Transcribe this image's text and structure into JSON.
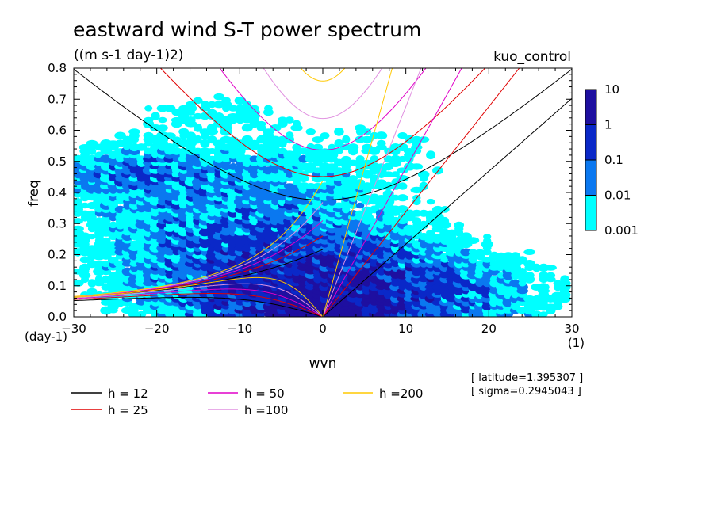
{
  "chart_data": {
    "type": "contour",
    "title": "eastward wind S-T power spectrum",
    "units": "((m s-1 day-1)2)",
    "case_name": "kuo_control",
    "xlabel": "wvn",
    "ylabel": "freq",
    "x_unit": "(1)",
    "y_unit": "(day-1)",
    "xlim": [
      -30,
      30
    ],
    "ylim": [
      0,
      0.8
    ],
    "x_ticks": [
      -30,
      -20,
      -10,
      0,
      10,
      20,
      30
    ],
    "x_tick_labels": [
      "−30",
      "−20",
      "−10",
      "0",
      "10",
      "20",
      "30"
    ],
    "y_ticks": [
      0,
      0.1,
      0.2,
      0.3,
      0.4,
      0.5,
      0.6,
      0.7,
      0.8
    ],
    "y_tick_labels": [
      "0.0",
      "0.1",
      "0.2",
      "0.3",
      "0.4",
      "0.5",
      "0.6",
      "0.7",
      "0.8"
    ],
    "color_levels": [
      0.001,
      0.01,
      0.1,
      1,
      10
    ],
    "colorbar_labels": [
      "10",
      "1",
      "0.1",
      "0.01",
      "0.001"
    ],
    "fill_colors": [
      "#00ffff",
      "#0a78f0",
      "#0a28c8",
      "#1e0fa0"
    ],
    "annotations": [
      "[ latitude=1.395307 ]",
      "[ sigma=0.2945043 ]"
    ],
    "dispersion_curves": [
      {
        "label": "h = 12",
        "h": 12,
        "color": "#000000"
      },
      {
        "label": "h = 25",
        "h": 25,
        "color": "#e00000"
      },
      {
        "label": "h = 50",
        "h": 50,
        "color": "#e000c8"
      },
      {
        "label": "h =100",
        "h": 100,
        "color": "#e090e0"
      },
      {
        "label": "h =200",
        "h": 200,
        "color": "#ffc800"
      }
    ]
  }
}
